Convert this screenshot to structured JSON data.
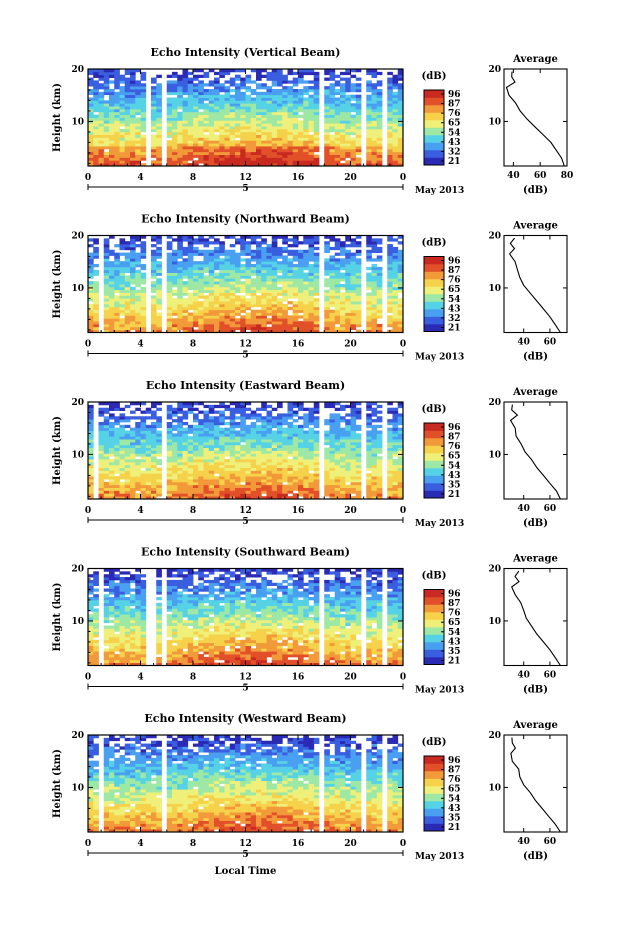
{
  "figure": {
    "xlabel": "Local Time",
    "date_label": "May 2013",
    "day_label": "5",
    "colorbar_unit": "(dB)",
    "colorbar_ticks": [
      [
        "96",
        "87",
        "76",
        "65",
        "54",
        "43",
        "32",
        "21"
      ],
      [
        "96",
        "87",
        "76",
        "65",
        "54",
        "43",
        "32",
        "21"
      ],
      [
        "96",
        "87",
        "76",
        "65",
        "54",
        "43",
        "35",
        "21"
      ],
      [
        "96",
        "87",
        "76",
        "65",
        "54",
        "43",
        "35",
        "21"
      ],
      [
        "96",
        "87",
        "76",
        "65",
        "54",
        "43",
        "35",
        "21"
      ]
    ],
    "colors": {
      "scale": [
        "#2a2ab4",
        "#3a5ee0",
        "#4aa0f0",
        "#56d2e6",
        "#9ee8a6",
        "#eef07a",
        "#f6d24a",
        "#f29a3a",
        "#e2502a",
        "#c82a22"
      ],
      "missing": "#ffffff"
    }
  },
  "chart_data": [
    {
      "type": "heatmap",
      "title": "Echo Intensity (Vertical Beam)",
      "ylabel": "Height (km)",
      "xticks": [
        "0",
        "4",
        "8",
        "12",
        "16",
        "20",
        "0"
      ],
      "yticks": [
        "10",
        "20"
      ],
      "xlim": [
        0,
        24
      ],
      "ylim": [
        1.5,
        20
      ],
      "profile": {
        "title": "Average",
        "xlabel": "(dB)",
        "xticks": [
          "40",
          "60",
          "80"
        ],
        "xlim": [
          33,
          80
        ],
        "yticks": [
          "10",
          "20"
        ],
        "heights": [
          1.5,
          3,
          4.5,
          6,
          7.5,
          9,
          10.5,
          12,
          13.5,
          15,
          16.5,
          17.5,
          18.5,
          19.5
        ],
        "values": [
          78,
          76,
          72,
          68,
          62,
          56,
          50,
          45,
          42,
          38,
          36,
          41,
          38,
          40
        ]
      }
    },
    {
      "type": "heatmap",
      "title": "Echo Intensity (Northward Beam)",
      "ylabel": "Height (km)",
      "xticks": [
        "0",
        "4",
        "8",
        "12",
        "16",
        "20",
        "0"
      ],
      "yticks": [
        "10",
        "20"
      ],
      "xlim": [
        0,
        24
      ],
      "ylim": [
        1.5,
        20
      ],
      "profile": {
        "title": "Average",
        "xlabel": "(dB)",
        "xticks": [
          "40",
          "60"
        ],
        "xlim": [
          25,
          73
        ],
        "yticks": [
          "10",
          "20"
        ],
        "heights": [
          1.5,
          3,
          4.5,
          6,
          7.5,
          9,
          10.5,
          12,
          13.5,
          15,
          16.5,
          17.5,
          18.5,
          19.5
        ],
        "values": [
          68,
          64,
          60,
          55,
          50,
          45,
          40,
          37,
          35,
          32,
          30,
          34,
          31,
          33
        ]
      }
    },
    {
      "type": "heatmap",
      "title": "Echo Intensity (Eastward Beam)",
      "ylabel": "Height (km)",
      "xticks": [
        "0",
        "4",
        "8",
        "12",
        "16",
        "20",
        "0"
      ],
      "yticks": [
        "10",
        "20"
      ],
      "xlim": [
        0,
        24
      ],
      "ylim": [
        1.5,
        20
      ],
      "profile": {
        "title": "Average",
        "xlabel": "(dB)",
        "xticks": [
          "40",
          "60"
        ],
        "xlim": [
          25,
          73
        ],
        "yticks": [
          "10",
          "20"
        ],
        "heights": [
          1.5,
          3,
          4.5,
          6,
          7.5,
          9,
          10.5,
          12,
          13.5,
          15,
          16.5,
          17.5,
          18.5,
          19.5
        ],
        "values": [
          68,
          65,
          60,
          55,
          50,
          46,
          41,
          38,
          35,
          33,
          31,
          34,
          31,
          32
        ]
      }
    },
    {
      "type": "heatmap",
      "title": "Echo Intensity (Southward Beam)",
      "ylabel": "Height (km)",
      "xticks": [
        "0",
        "4",
        "8",
        "12",
        "16",
        "20",
        "0"
      ],
      "yticks": [
        "10",
        "20"
      ],
      "xlim": [
        0,
        24
      ],
      "ylim": [
        1.5,
        20
      ],
      "profile": {
        "title": "Average",
        "xlabel": "(dB)",
        "xticks": [
          "40",
          "60"
        ],
        "xlim": [
          25,
          73
        ],
        "yticks": [
          "10",
          "20"
        ],
        "heights": [
          1.5,
          3,
          4.5,
          6,
          7.5,
          9,
          10.5,
          12,
          13.5,
          15,
          16.5,
          17.5,
          18.5,
          19.5
        ],
        "values": [
          68,
          64,
          60,
          55,
          50,
          46,
          42,
          40,
          37,
          34,
          32,
          36,
          33,
          35
        ]
      }
    },
    {
      "type": "heatmap",
      "title": "Echo Intensity (Westward Beam)",
      "ylabel": "Height (km)",
      "xticks": [
        "0",
        "4",
        "8",
        "12",
        "16",
        "20",
        "0"
      ],
      "yticks": [
        "10",
        "20"
      ],
      "xlim": [
        0,
        24
      ],
      "ylim": [
        1.5,
        20
      ],
      "profile": {
        "title": "Average",
        "xlabel": "(dB)",
        "xticks": [
          "40",
          "60"
        ],
        "xlim": [
          25,
          73
        ],
        "yticks": [
          "10",
          "20"
        ],
        "heights": [
          1.5,
          3,
          4.5,
          6,
          7.5,
          9,
          10.5,
          12,
          13.5,
          15,
          16.5,
          17.5,
          18.5,
          19.5
        ],
        "values": [
          68,
          64,
          59,
          54,
          49,
          45,
          40,
          37,
          35,
          32,
          30,
          33,
          30,
          32
        ]
      }
    }
  ]
}
